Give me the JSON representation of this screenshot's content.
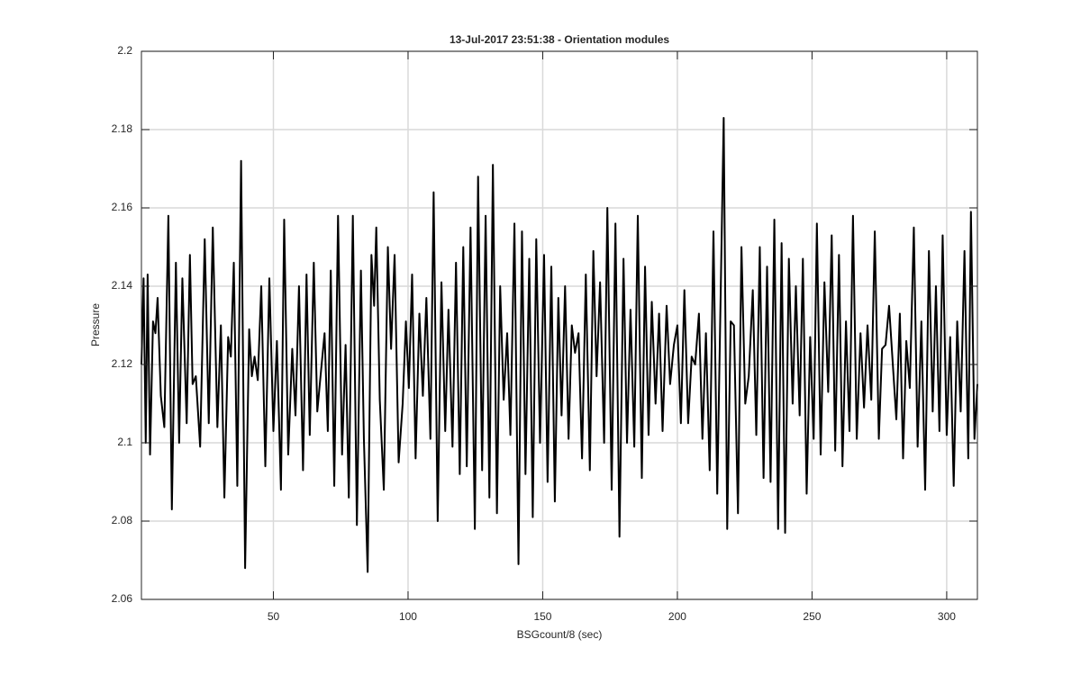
{
  "chart_data": {
    "type": "line",
    "title": "13-Jul-2017 23:51:38 - Orientation modules",
    "x_label": "BSGcount/8 (sec)",
    "y_label": "Pressure",
    "color": "#000000",
    "grid": true,
    "xlim": [
      1,
      311.4
    ],
    "ylim": [
      2.06,
      2.2
    ],
    "xticks": [
      50,
      100,
      150,
      200,
      250,
      300
    ],
    "yticks": [
      2.06,
      2.08,
      2.1,
      2.12,
      2.14,
      2.16,
      2.18,
      2.2
    ],
    "x": [
      1,
      1.8,
      2.6,
      3.3,
      4.2,
      5.3,
      6.2,
      7,
      8.2,
      9.5,
      11,
      12.3,
      13.8,
      15,
      16.2,
      17.8,
      19,
      20,
      21.2,
      22.8,
      24.5,
      26,
      27.5,
      29.2,
      30.5,
      31.8,
      33.2,
      34.2,
      35.3,
      36.6,
      38,
      39.5,
      41,
      42,
      43,
      44.2,
      45.5,
      47,
      48.5,
      50,
      51.3,
      52.8,
      54,
      55.5,
      57,
      58.2,
      59.5,
      61,
      62.3,
      63.5,
      65,
      66.3,
      67.5,
      69,
      70.2,
      71.3,
      72.6,
      74,
      75.5,
      76.8,
      78,
      79.5,
      81,
      82.5,
      83.6,
      85,
      86.4,
      87.4,
      88.2,
      89.5,
      91,
      92.5,
      93.7,
      95,
      96.5,
      98,
      99.2,
      100.3,
      101.5,
      102.8,
      104.2,
      105.5,
      106.8,
      108.3,
      109.5,
      111,
      112.4,
      113.8,
      115,
      116.5,
      117.8,
      119.2,
      120.5,
      121.8,
      123.2,
      124.8,
      126,
      127.5,
      128.8,
      130.2,
      131.5,
      133,
      134.2,
      135.5,
      136.8,
      138,
      139.5,
      141,
      142.3,
      143.6,
      145,
      146.3,
      147.6,
      149,
      150.5,
      151.8,
      153.2,
      154.5,
      155.8,
      157,
      158.3,
      159.6,
      160.8,
      162,
      163.3,
      164.6,
      166,
      167.5,
      168.8,
      170,
      171.3,
      172.8,
      174,
      175.6,
      177,
      178.5,
      180,
      181.3,
      182.6,
      184,
      185.3,
      186.8,
      188,
      189.3,
      190.5,
      191.9,
      193.2,
      194.5,
      196,
      197.3,
      198.7,
      200,
      201.3,
      202.6,
      204,
      205.3,
      206.6,
      208,
      209.3,
      210.6,
      212,
      213.4,
      214.8,
      216,
      217.2,
      218.5,
      219.8,
      221,
      222.5,
      223.8,
      225.2,
      226.5,
      228,
      229.3,
      230.6,
      232,
      233.3,
      234.6,
      236,
      237.4,
      238.7,
      240,
      241.4,
      242.8,
      244,
      245.4,
      246.6,
      248,
      249.3,
      250.6,
      251.8,
      253.2,
      254.6,
      256,
      257.3,
      258.6,
      260,
      261.3,
      262.6,
      263.9,
      265.2,
      266.6,
      268,
      269.3,
      270.6,
      272,
      273.3,
      274.8,
      276,
      277.3,
      278.6,
      280,
      281.3,
      282.6,
      283.8,
      285,
      286.3,
      287.8,
      289.2,
      290.6,
      292,
      293.4,
      294.8,
      296,
      297.3,
      298.5,
      300,
      301.3,
      302.6,
      303.9,
      305.2,
      306.6,
      308,
      309,
      310.3,
      311.4
    ],
    "values": [
      2.12,
      2.142,
      2.1,
      2.143,
      2.097,
      2.131,
      2.128,
      2.137,
      2.112,
      2.104,
      2.158,
      2.083,
      2.146,
      2.1,
      2.142,
      2.105,
      2.148,
      2.115,
      2.117,
      2.099,
      2.152,
      2.105,
      2.155,
      2.104,
      2.13,
      2.086,
      2.127,
      2.122,
      2.146,
      2.089,
      2.172,
      2.068,
      2.129,
      2.117,
      2.122,
      2.116,
      2.14,
      2.094,
      2.142,
      2.103,
      2.126,
      2.088,
      2.157,
      2.097,
      2.124,
      2.107,
      2.14,
      2.093,
      2.143,
      2.102,
      2.146,
      2.108,
      2.117,
      2.128,
      2.103,
      2.144,
      2.089,
      2.158,
      2.097,
      2.125,
      2.086,
      2.158,
      2.079,
      2.144,
      2.101,
      2.067,
      2.148,
      2.135,
      2.155,
      2.111,
      2.088,
      2.15,
      2.124,
      2.148,
      2.095,
      2.11,
      2.131,
      2.114,
      2.143,
      2.096,
      2.133,
      2.112,
      2.137,
      2.101,
      2.164,
      2.08,
      2.141,
      2.103,
      2.134,
      2.099,
      2.146,
      2.092,
      2.15,
      2.094,
      2.155,
      2.078,
      2.168,
      2.093,
      2.158,
      2.086,
      2.171,
      2.082,
      2.14,
      2.111,
      2.128,
      2.102,
      2.156,
      2.069,
      2.154,
      2.092,
      2.147,
      2.081,
      2.152,
      2.1,
      2.148,
      2.09,
      2.145,
      2.085,
      2.137,
      2.107,
      2.14,
      2.101,
      2.13,
      2.123,
      2.128,
      2.096,
      2.143,
      2.093,
      2.149,
      2.117,
      2.141,
      2.1,
      2.16,
      2.088,
      2.156,
      2.076,
      2.147,
      2.1,
      2.134,
      2.099,
      2.158,
      2.091,
      2.145,
      2.102,
      2.136,
      2.11,
      2.133,
      2.103,
      2.135,
      2.115,
      2.125,
      2.13,
      2.105,
      2.139,
      2.105,
      2.122,
      2.12,
      2.133,
      2.101,
      2.128,
      2.093,
      2.154,
      2.087,
      2.135,
      2.183,
      2.078,
      2.131,
      2.13,
      2.082,
      2.15,
      2.11,
      2.117,
      2.139,
      2.102,
      2.15,
      2.091,
      2.145,
      2.09,
      2.157,
      2.078,
      2.151,
      2.077,
      2.147,
      2.11,
      2.14,
      2.107,
      2.147,
      2.087,
      2.127,
      2.101,
      2.156,
      2.097,
      2.141,
      2.113,
      2.153,
      2.098,
      2.148,
      2.094,
      2.131,
      2.103,
      2.158,
      2.101,
      2.128,
      2.109,
      2.13,
      2.111,
      2.154,
      2.101,
      2.124,
      2.125,
      2.135,
      2.12,
      2.106,
      2.133,
      2.096,
      2.126,
      2.114,
      2.155,
      2.099,
      2.131,
      2.088,
      2.149,
      2.108,
      2.14,
      2.103,
      2.153,
      2.102,
      2.127,
      2.089,
      2.131,
      2.108,
      2.149,
      2.096,
      2.159,
      2.101,
      2.115
    ]
  }
}
